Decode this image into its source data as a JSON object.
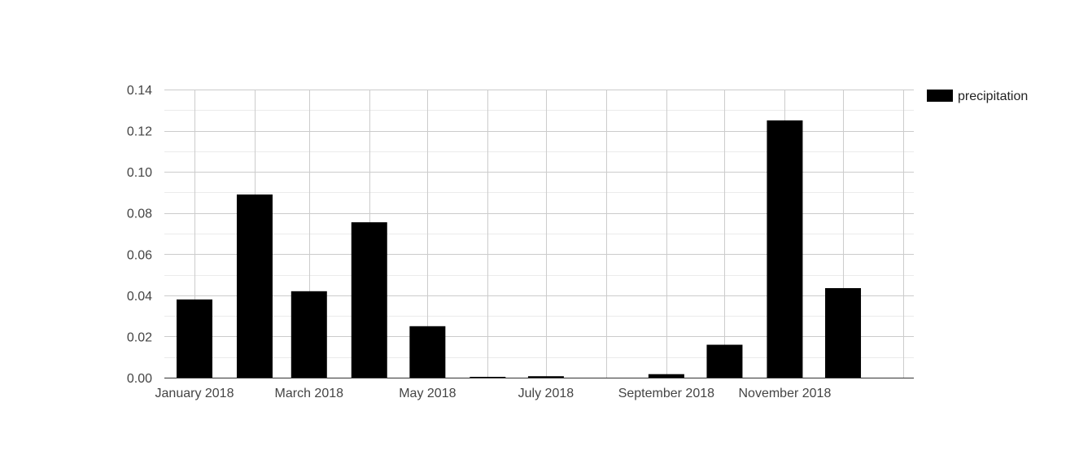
{
  "chart_data": {
    "type": "bar",
    "x": [
      "2018-01",
      "2018-02",
      "2018-03",
      "2018-04",
      "2018-05",
      "2018-06",
      "2018-07",
      "2018-08",
      "2018-09",
      "2018-10",
      "2018-11",
      "2018-12"
    ],
    "x_tick_labels": [
      {
        "x": "2018-01",
        "label": "January 2018"
      },
      {
        "x": "2018-03",
        "label": "March 2018"
      },
      {
        "x": "2018-05",
        "label": "May 2018"
      },
      {
        "x": "2018-07",
        "label": "July 2018"
      },
      {
        "x": "2018-09",
        "label": "September 2018"
      },
      {
        "x": "2018-11",
        "label": "November 2018"
      }
    ],
    "series": [
      {
        "name": "precipitation",
        "color": "#000000",
        "values": [
          0.038,
          0.089,
          0.042,
          0.0755,
          0.025,
          0.0003,
          0.0007,
          0.0,
          0.0017,
          0.016,
          0.125,
          0.0435
        ]
      }
    ],
    "y_ticks": [
      "0.00",
      "0.02",
      "0.04",
      "0.06",
      "0.08",
      "0.10",
      "0.12",
      "0.14"
    ],
    "ylim": [
      0,
      0.14
    ],
    "title": "",
    "xlabel": "",
    "ylabel": "",
    "grid": true,
    "minor_grid": true,
    "legend_position": "right",
    "colors": {
      "grid_major": "#cccccc",
      "grid_minor": "#ebebeb",
      "axis": "#333333",
      "bar": "#000000"
    }
  }
}
